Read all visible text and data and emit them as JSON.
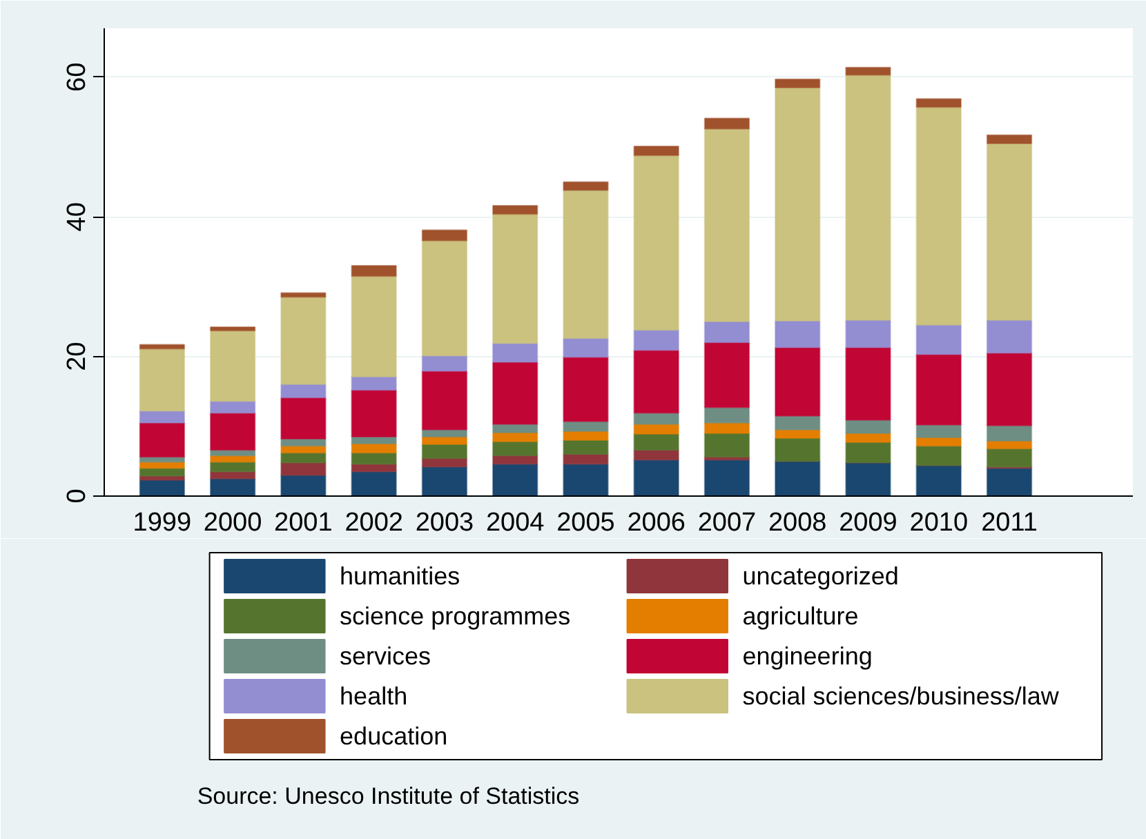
{
  "chart_data": {
    "type": "bar",
    "stacked": true,
    "categories": [
      "1999",
      "2000",
      "2001",
      "2002",
      "2003",
      "2004",
      "2005",
      "2006",
      "2007",
      "2008",
      "2009",
      "2010",
      "2011"
    ],
    "series": [
      {
        "name": "humanities",
        "color": "#1a476f",
        "values": [
          2.3,
          2.5,
          3.0,
          3.5,
          4.2,
          4.6,
          4.6,
          5.2,
          5.2,
          5.0,
          4.8,
          4.4,
          4.0
        ]
      },
      {
        "name": "uncategorized",
        "color": "#90353b",
        "values": [
          0.6,
          1.0,
          1.8,
          1.1,
          1.2,
          1.2,
          1.4,
          1.4,
          0.4,
          0,
          0,
          0,
          0.2
        ]
      },
      {
        "name": "science programmes",
        "color": "#55752f",
        "values": [
          1.1,
          1.4,
          1.4,
          1.6,
          2.0,
          2.0,
          2.0,
          2.3,
          3.4,
          3.3,
          2.9,
          2.8,
          2.6
        ]
      },
      {
        "name": "agriculture",
        "color": "#e37e00",
        "values": [
          0.9,
          0.9,
          1.0,
          1.3,
          1.1,
          1.3,
          1.3,
          1.4,
          1.5,
          1.2,
          1.3,
          1.2,
          1.1
        ]
      },
      {
        "name": "services",
        "color": "#6e8e84",
        "values": [
          0.7,
          0.8,
          1.0,
          1.0,
          1.0,
          1.2,
          1.4,
          1.6,
          2.2,
          2.0,
          1.9,
          1.8,
          2.2
        ]
      },
      {
        "name": "engineering",
        "color": "#c10534",
        "values": [
          4.9,
          5.3,
          5.9,
          6.7,
          8.4,
          8.9,
          9.2,
          9.0,
          9.3,
          9.8,
          10.4,
          10.1,
          10.4
        ]
      },
      {
        "name": "health",
        "color": "#938dd2",
        "values": [
          1.7,
          1.7,
          1.9,
          1.9,
          2.2,
          2.7,
          2.7,
          2.9,
          3.0,
          3.8,
          3.9,
          4.2,
          4.7
        ]
      },
      {
        "name": "social sciences/business/law",
        "color": "#cac27e",
        "values": [
          8.9,
          10.1,
          12.5,
          14.4,
          16.5,
          18.5,
          21.2,
          25.0,
          27.6,
          33.4,
          35.1,
          31.2,
          25.3
        ]
      },
      {
        "name": "education",
        "color": "#a0522d",
        "values": [
          0.6,
          0.5,
          0.6,
          1.5,
          1.5,
          1.2,
          1.2,
          1.3,
          1.5,
          1.2,
          1.1,
          1.2,
          1.2
        ]
      }
    ],
    "ylim": [
      0,
      67
    ],
    "yticks": [
      0,
      20,
      40,
      60
    ],
    "grid": "y",
    "legend": "bottom",
    "annotations": [
      "Source: Unesco Institute of Statistics"
    ]
  }
}
